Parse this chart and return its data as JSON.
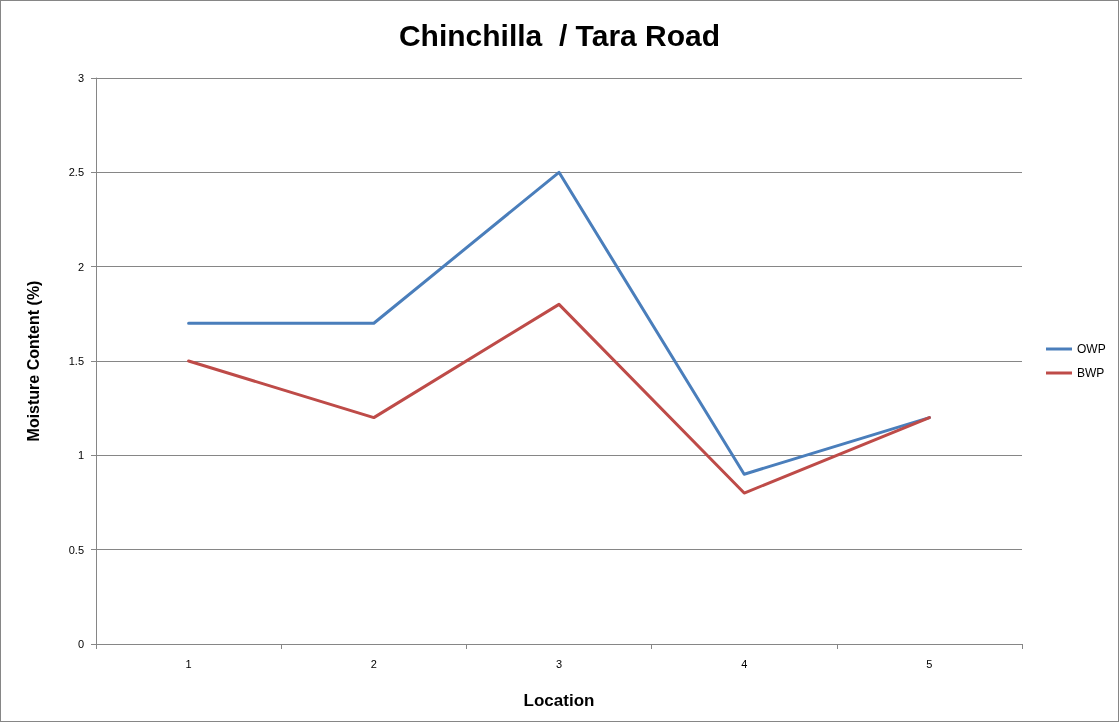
{
  "chart_data": {
    "type": "line",
    "title": "Chinchilla  / Tara Road",
    "xlabel": "Location",
    "ylabel": "Moisture Content (%)",
    "categories": [
      "1",
      "2",
      "3",
      "4",
      "5"
    ],
    "series": [
      {
        "name": "OWP",
        "color": "#4a7ebb",
        "values": [
          1.7,
          1.7,
          2.5,
          0.9,
          1.2
        ]
      },
      {
        "name": "BWP",
        "color": "#be4b48",
        "values": [
          1.5,
          1.2,
          1.8,
          0.8,
          1.2
        ]
      }
    ],
    "ylim": [
      0,
      3
    ],
    "yticks": [
      0,
      0.5,
      1,
      1.5,
      2,
      2.5,
      3
    ],
    "grid": "y",
    "legend": "right",
    "marker": "none",
    "line_style": "solid"
  }
}
